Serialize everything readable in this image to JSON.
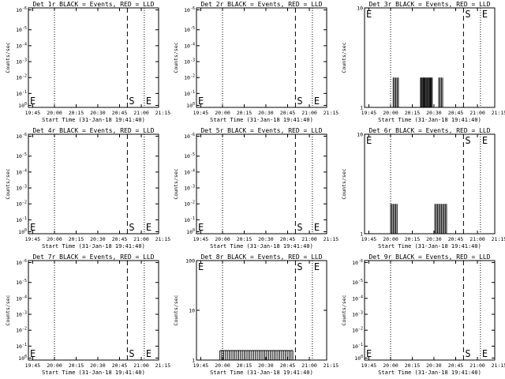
{
  "chart_data": [
    {
      "type": "line",
      "title": "Det 1r BLACK = Events, RED = LLD",
      "ylabel": "Counts/sec",
      "xlabel": "Start Time (31-Jan-18 19:41:40)",
      "xlim": [
        0,
        100
      ],
      "x_tick_labels": [
        "19:45",
        "20:00",
        "20:15",
        "20:30",
        "20:45",
        "21:00",
        "21:15"
      ],
      "x_tick_positions": [
        3.3,
        20,
        36.7,
        53.3,
        70,
        86.7,
        103.3
      ],
      "yscale": "log",
      "y_tick_labels": [
        "10^0",
        "10^-1",
        "10^-2",
        "10^-3",
        "10^-4",
        "10^-5",
        "10^-6"
      ],
      "lines": [
        {
          "x": 20,
          "style": "dotted"
        },
        {
          "x": 76,
          "style": "dashed",
          "label": "S"
        },
        {
          "x": 89,
          "style": "dotted",
          "label": "E"
        }
      ],
      "events": []
    },
    {
      "type": "line",
      "title": "Det 2r BLACK = Events, RED = LLD",
      "ylabel": "Counts/sec",
      "xlabel": "Start Time (31-Jan-18 19:41:40)",
      "xlim": [
        0,
        100
      ],
      "x_tick_labels": [
        "19:45",
        "20:00",
        "20:15",
        "20:30",
        "20:45",
        "21:00",
        "21:15"
      ],
      "x_tick_positions": [
        3.3,
        20,
        36.7,
        53.3,
        70,
        86.7,
        103.3
      ],
      "yscale": "log",
      "y_tick_labels": [
        "10^0",
        "10^-1",
        "10^-2",
        "10^-3",
        "10^-4",
        "10^-5",
        "10^-6"
      ],
      "lines": [
        {
          "x": 20,
          "style": "dotted"
        },
        {
          "x": 76,
          "style": "dashed",
          "label": "S"
        },
        {
          "x": 89,
          "style": "dotted",
          "label": "E"
        }
      ],
      "events": []
    },
    {
      "type": "line",
      "title": "Det 3r BLACK = Events, RED = LLD",
      "ylabel": "Counts/sec",
      "xlabel": "Start Time (31-Jan-18 19:41:40)",
      "xlim": [
        0,
        100
      ],
      "x_tick_labels": [
        "19:45",
        "20:00",
        "20:15",
        "20:30",
        "20:45",
        "21:00",
        "21:15"
      ],
      "x_tick_positions": [
        3.3,
        20,
        36.7,
        53.3,
        70,
        86.7,
        103.3
      ],
      "yscale": "log",
      "y_tick_labels": [
        "1",
        "10"
      ],
      "lines": [
        {
          "x": 20,
          "style": "dotted"
        },
        {
          "x": 76,
          "style": "dashed",
          "label": "S"
        },
        {
          "x": 89,
          "style": "dotted",
          "label": "E"
        }
      ],
      "events": [
        {
          "x_start": 22,
          "x_end": 26,
          "count": 5
        },
        {
          "x_start": 43,
          "x_end": 52,
          "count": 14
        },
        {
          "x_start": 57,
          "x_end": 60,
          "count": 4
        }
      ]
    },
    {
      "type": "line",
      "title": "Det 4r BLACK = Events, RED = LLD",
      "ylabel": "Counts/sec",
      "xlabel": "Start Time (31-Jan-18 19:41:40)",
      "xlim": [
        0,
        100
      ],
      "x_tick_labels": [
        "19:45",
        "20:00",
        "20:15",
        "20:30",
        "20:45",
        "21:00",
        "21:15"
      ],
      "x_tick_positions": [
        3.3,
        20,
        36.7,
        53.3,
        70,
        86.7,
        103.3
      ],
      "yscale": "log",
      "y_tick_labels": [
        "10^0",
        "10^-1",
        "10^-2",
        "10^-3",
        "10^-4",
        "10^-5",
        "10^-6"
      ],
      "lines": [
        {
          "x": 20,
          "style": "dotted"
        },
        {
          "x": 76,
          "style": "dashed",
          "label": "S"
        },
        {
          "x": 89,
          "style": "dotted",
          "label": "E"
        }
      ],
      "events": []
    },
    {
      "type": "line",
      "title": "Det 5r BLACK = Events, RED = LLD",
      "ylabel": "Counts/sec",
      "xlabel": "Start Time (31-Jan-18 19:41:40)",
      "xlim": [
        0,
        100
      ],
      "x_tick_labels": [
        "19:45",
        "20:00",
        "20:15",
        "20:30",
        "20:45",
        "21:00",
        "21:15"
      ],
      "x_tick_positions": [
        3.3,
        20,
        36.7,
        53.3,
        70,
        86.7,
        103.3
      ],
      "yscale": "log",
      "y_tick_labels": [
        "10^0",
        "10^-1",
        "10^-2",
        "10^-3",
        "10^-4",
        "10^-5",
        "10^-6"
      ],
      "lines": [
        {
          "x": 20,
          "style": "dotted"
        },
        {
          "x": 76,
          "style": "dashed",
          "label": "S"
        },
        {
          "x": 89,
          "style": "dotted",
          "label": "E"
        }
      ],
      "events": []
    },
    {
      "type": "line",
      "title": "Det 6r BLACK = Events, RED = LLD",
      "ylabel": "Counts/sec",
      "xlabel": "Start Time (31-Jan-18 19:41:40)",
      "xlim": [
        0,
        100
      ],
      "x_tick_labels": [
        "19:45",
        "20:00",
        "20:15",
        "20:30",
        "20:45",
        "21:00",
        "21:15"
      ],
      "x_tick_positions": [
        3.3,
        20,
        36.7,
        53.3,
        70,
        86.7,
        103.3
      ],
      "yscale": "log",
      "y_tick_labels": [
        "1",
        "10"
      ],
      "lines": [
        {
          "x": 20,
          "style": "dotted"
        },
        {
          "x": 76,
          "style": "dashed",
          "label": "S"
        },
        {
          "x": 89,
          "style": "dotted",
          "label": "E"
        }
      ],
      "events": [
        {
          "x_start": 20,
          "x_end": 25,
          "count": 6
        },
        {
          "x_start": 54,
          "x_end": 63,
          "count": 10
        }
      ]
    },
    {
      "type": "line",
      "title": "Det 7r BLACK = Events, RED = LLD",
      "ylabel": "Counts/sec",
      "xlabel": "Start Time (31-Jan-18 19:41:40)",
      "xlim": [
        0,
        100
      ],
      "x_tick_labels": [
        "19:45",
        "20:00",
        "20:15",
        "20:30",
        "20:45",
        "21:00",
        "21:15"
      ],
      "x_tick_positions": [
        3.3,
        20,
        36.7,
        53.3,
        70,
        86.7,
        103.3
      ],
      "yscale": "log",
      "y_tick_labels": [
        "10^0",
        "10^-1",
        "10^-2",
        "10^-3",
        "10^-4",
        "10^-5",
        "10^-6"
      ],
      "lines": [
        {
          "x": 20,
          "style": "dotted"
        },
        {
          "x": 76,
          "style": "dashed",
          "label": "S"
        },
        {
          "x": 89,
          "style": "dotted",
          "label": "E"
        }
      ],
      "events": []
    },
    {
      "type": "line",
      "title": "Det 8r BLACK = Events, RED = LLD",
      "ylabel": "Counts/sec",
      "xlabel": "Start Time (31-Jan-18 19:41:40)",
      "xlim": [
        0,
        100
      ],
      "x_tick_labels": [
        "19:45",
        "20:00",
        "20:15",
        "20:30",
        "20:45",
        "21:00",
        "21:15"
      ],
      "x_tick_positions": [
        3.3,
        20,
        36.7,
        53.3,
        70,
        86.7,
        103.3
      ],
      "yscale": "log",
      "y_tick_labels": [
        "1",
        "10",
        "100"
      ],
      "lines": [
        {
          "x": 20,
          "style": "dotted"
        },
        {
          "x": 76,
          "style": "dashed",
          "label": "S"
        },
        {
          "x": 89,
          "style": "dotted",
          "label": "E"
        }
      ],
      "events": [
        {
          "x_start": 18,
          "x_end": 74,
          "count": 40
        }
      ]
    },
    {
      "type": "line",
      "title": "Det 9r BLACK = Events, RED = LLD",
      "ylabel": "Counts/sec",
      "xlabel": "Start Time (31-Jan-18 19:41:40)",
      "xlim": [
        0,
        100
      ],
      "x_tick_labels": [
        "19:45",
        "20:00",
        "20:15",
        "20:30",
        "20:45",
        "21:00",
        "21:15"
      ],
      "x_tick_positions": [
        3.3,
        20,
        36.7,
        53.3,
        70,
        86.7,
        103.3
      ],
      "yscale": "log",
      "y_tick_labels": [
        "10^0",
        "10^-1",
        "10^-2",
        "10^-3",
        "10^-4",
        "10^-5",
        "10^-6"
      ],
      "lines": [
        {
          "x": 20,
          "style": "dotted"
        },
        {
          "x": 76,
          "style": "dashed",
          "label": "S"
        },
        {
          "x": 89,
          "style": "dotted",
          "label": "E"
        }
      ],
      "events": []
    }
  ]
}
